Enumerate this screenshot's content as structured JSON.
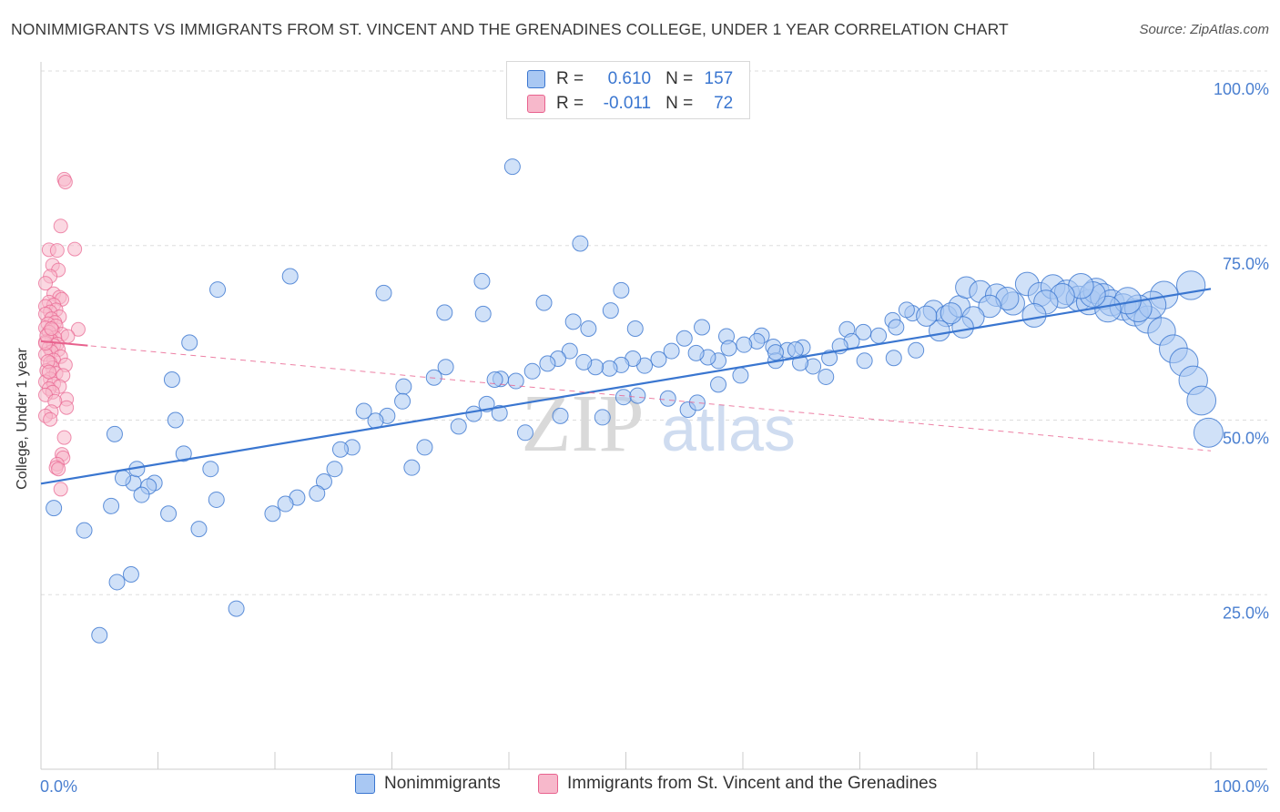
{
  "title": "NONIMMIGRANTS VS IMMIGRANTS FROM ST. VINCENT AND THE GRENADINES COLLEGE, UNDER 1 YEAR CORRELATION CHART",
  "source": "Source: ZipAtlas.com",
  "watermark": {
    "zip": "ZIP",
    "atlas": "atlas"
  },
  "colors": {
    "blue": "#3a76d0",
    "blue_fill": "#a9c8f3",
    "pink": "#e8628e",
    "pink_fill": "#f7b8cb",
    "grid": "#dddddd"
  },
  "legend": {
    "r_label": "R =",
    "n_label": "N =",
    "series": [
      {
        "r": "0.610",
        "n": "157"
      },
      {
        "r": "-0.011",
        "n": "72"
      }
    ]
  },
  "bottom_legend": [
    "Nonimmigrants",
    "Immigrants from St. Vincent and the Grenadines"
  ],
  "chart_data": {
    "type": "scatter",
    "title": "NONIMMIGRANTS VS IMMIGRANTS FROM ST. VINCENT AND THE GRENADINES COLLEGE, UNDER 1 YEAR CORRELATION CHART",
    "xlabel": "",
    "ylabel": "College, Under 1 year",
    "xlim": [
      0,
      100
    ],
    "ylim": [
      0,
      100
    ],
    "x_tick_labels": [
      "0.0%",
      "100.0%"
    ],
    "y_ticks": [
      25,
      50,
      75,
      100
    ],
    "y_tick_labels": [
      "25.0%",
      "50.0%",
      "75.0%",
      "100.0%"
    ],
    "series": [
      {
        "name": "Nonimmigrants",
        "color": "#3a76d0",
        "trend": {
          "x0": 0,
          "y0": 40.9,
          "x1": 100,
          "y1": 68.8,
          "style": "solid"
        },
        "points": [
          [
            40.3,
            86.3
          ],
          [
            46.1,
            75.3
          ],
          [
            21.3,
            70.6
          ],
          [
            37.7,
            69.9
          ],
          [
            29.3,
            68.2
          ],
          [
            49.6,
            68.6
          ],
          [
            43.0,
            66.8
          ],
          [
            48.7,
            65.7
          ],
          [
            34.5,
            65.4
          ],
          [
            37.8,
            65.2
          ],
          [
            45.5,
            64.1
          ],
          [
            46.8,
            63.1
          ],
          [
            50.8,
            63.1
          ],
          [
            56.5,
            63.3
          ],
          [
            58.6,
            62.0
          ],
          [
            61.6,
            62.1
          ],
          [
            62.6,
            60.5
          ],
          [
            65.1,
            60.4
          ],
          [
            68.9,
            63.0
          ],
          [
            70.3,
            62.6
          ],
          [
            72.8,
            64.3
          ],
          [
            74.5,
            65.3
          ],
          [
            76.3,
            65.7
          ],
          [
            77.4,
            64.9
          ],
          [
            78.5,
            66.3
          ],
          [
            79.1,
            69.0
          ],
          [
            80.3,
            68.4
          ],
          [
            81.7,
            67.9
          ],
          [
            83.1,
            66.7
          ],
          [
            84.3,
            69.5
          ],
          [
            85.4,
            68.0
          ],
          [
            86.5,
            69.1
          ],
          [
            87.7,
            68.3
          ],
          [
            88.7,
            67.4
          ],
          [
            89.6,
            66.9
          ],
          [
            90.2,
            68.5
          ],
          [
            90.8,
            67.7
          ],
          [
            91.5,
            66.8
          ],
          [
            92.5,
            66.2
          ],
          [
            93.5,
            65.4
          ],
          [
            94.6,
            64.4
          ],
          [
            95.8,
            62.7
          ],
          [
            96.8,
            60.2
          ],
          [
            97.7,
            58.3
          ],
          [
            98.5,
            55.7
          ],
          [
            99.2,
            52.8
          ],
          [
            99.8,
            48.2
          ],
          [
            98.3,
            69.3
          ],
          [
            96.0,
            67.9
          ],
          [
            95.0,
            66.5
          ],
          [
            93.8,
            66.0
          ],
          [
            92.9,
            67.1
          ],
          [
            91.2,
            65.9
          ],
          [
            89.9,
            68.0
          ],
          [
            88.9,
            69.2
          ],
          [
            87.3,
            67.8
          ],
          [
            85.9,
            66.9
          ],
          [
            84.9,
            65.0
          ],
          [
            82.6,
            67.4
          ],
          [
            81.1,
            66.3
          ],
          [
            79.7,
            64.7
          ],
          [
            78.8,
            63.3
          ],
          [
            77.8,
            65.3
          ],
          [
            76.8,
            62.8
          ],
          [
            75.7,
            64.9
          ],
          [
            74.0,
            65.8
          ],
          [
            73.1,
            63.3
          ],
          [
            71.6,
            62.1
          ],
          [
            69.3,
            61.3
          ],
          [
            68.3,
            60.6
          ],
          [
            67.4,
            58.9
          ],
          [
            66.0,
            57.7
          ],
          [
            64.9,
            58.2
          ],
          [
            63.8,
            60.0
          ],
          [
            62.8,
            58.5
          ],
          [
            61.2,
            61.3
          ],
          [
            60.1,
            60.8
          ],
          [
            58.8,
            60.3
          ],
          [
            57.9,
            58.5
          ],
          [
            57.0,
            59.0
          ],
          [
            56.0,
            59.6
          ],
          [
            55.0,
            61.7
          ],
          [
            53.9,
            59.9
          ],
          [
            52.8,
            58.7
          ],
          [
            51.6,
            57.8
          ],
          [
            50.6,
            58.8
          ],
          [
            49.6,
            57.9
          ],
          [
            48.6,
            57.4
          ],
          [
            47.4,
            57.6
          ],
          [
            46.4,
            58.3
          ],
          [
            45.2,
            59.9
          ],
          [
            44.2,
            58.8
          ],
          [
            43.3,
            58.1
          ],
          [
            42.0,
            57.0
          ],
          [
            40.6,
            55.6
          ],
          [
            39.3,
            55.9
          ],
          [
            38.8,
            55.8
          ],
          [
            38.1,
            52.3
          ],
          [
            37.0,
            50.9
          ],
          [
            35.7,
            49.1
          ],
          [
            34.6,
            57.6
          ],
          [
            33.6,
            56.1
          ],
          [
            32.8,
            46.1
          ],
          [
            31.7,
            43.2
          ],
          [
            31.0,
            54.8
          ],
          [
            30.9,
            52.7
          ],
          [
            29.6,
            50.6
          ],
          [
            28.6,
            49.9
          ],
          [
            27.6,
            51.3
          ],
          [
            26.6,
            46.1
          ],
          [
            25.6,
            45.8
          ],
          [
            25.1,
            43.0
          ],
          [
            24.2,
            41.2
          ],
          [
            23.6,
            39.5
          ],
          [
            21.9,
            38.9
          ],
          [
            20.9,
            38.0
          ],
          [
            19.8,
            36.6
          ],
          [
            16.7,
            23.0
          ],
          [
            15.0,
            38.6
          ],
          [
            13.5,
            34.4
          ],
          [
            11.5,
            50.0
          ],
          [
            7.9,
            41.0
          ],
          [
            6.0,
            37.7
          ],
          [
            6.3,
            48.0
          ],
          [
            12.7,
            61.1
          ],
          [
            15.1,
            68.7
          ],
          [
            11.2,
            55.8
          ],
          [
            14.5,
            43.0
          ],
          [
            10.9,
            36.6
          ],
          [
            12.2,
            45.2
          ],
          [
            9.7,
            41.0
          ],
          [
            9.2,
            40.5
          ],
          [
            8.6,
            39.3
          ],
          [
            7.0,
            41.7
          ],
          [
            8.2,
            43.0
          ],
          [
            7.7,
            27.9
          ],
          [
            6.5,
            26.8
          ],
          [
            5.0,
            19.2
          ],
          [
            3.7,
            34.2
          ],
          [
            1.1,
            37.4
          ],
          [
            39.2,
            51.0
          ],
          [
            41.4,
            48.2
          ],
          [
            44.4,
            50.6
          ],
          [
            48.0,
            50.4
          ],
          [
            49.8,
            53.3
          ],
          [
            51.0,
            53.5
          ],
          [
            53.6,
            53.1
          ],
          [
            55.3,
            51.5
          ],
          [
            56.1,
            52.5
          ],
          [
            57.9,
            55.1
          ],
          [
            59.8,
            56.4
          ],
          [
            62.8,
            59.7
          ],
          [
            64.5,
            60.1
          ],
          [
            67.1,
            56.2
          ],
          [
            70.4,
            58.5
          ],
          [
            72.9,
            58.9
          ],
          [
            74.8,
            60.0
          ]
        ]
      },
      {
        "name": "Immigrants from St. Vincent and the Grenadines",
        "color": "#e8628e",
        "trend": {
          "x0": 0,
          "y0": 61.3,
          "x1": 100,
          "y1": 45.6,
          "style": "dashed",
          "solid_x_end": 4.0
        },
        "points": [
          [
            1.6,
            84.5
          ],
          [
            1.7,
            84.1
          ],
          [
            1.3,
            77.8
          ],
          [
            2.5,
            74.5
          ],
          [
            0.3,
            74.4
          ],
          [
            1.0,
            74.3
          ],
          [
            0.6,
            72.2
          ],
          [
            1.1,
            71.5
          ],
          [
            0.4,
            70.6
          ],
          [
            0.0,
            69.6
          ],
          [
            0.7,
            68.1
          ],
          [
            1.2,
            67.6
          ],
          [
            1.4,
            67.3
          ],
          [
            0.3,
            66.9
          ],
          [
            0.7,
            66.5
          ],
          [
            0.0,
            66.3
          ],
          [
            0.9,
            65.8
          ],
          [
            0.4,
            65.5
          ],
          [
            0.0,
            65.2
          ],
          [
            1.2,
            64.8
          ],
          [
            0.5,
            64.5
          ],
          [
            0.8,
            64.0
          ],
          [
            0.2,
            63.8
          ],
          [
            0.9,
            63.5
          ],
          [
            0.0,
            63.2
          ],
          [
            2.8,
            63.0
          ],
          [
            0.6,
            62.9
          ],
          [
            0.3,
            62.6
          ],
          [
            1.4,
            62.3
          ],
          [
            1.9,
            62.0
          ],
          [
            0.8,
            61.8
          ],
          [
            0.5,
            61.4
          ],
          [
            0.0,
            61.2
          ],
          [
            1.0,
            60.9
          ],
          [
            0.7,
            60.7
          ],
          [
            0.3,
            60.4
          ],
          [
            1.1,
            60.1
          ],
          [
            0.5,
            59.8
          ],
          [
            0.0,
            59.4
          ],
          [
            1.3,
            59.1
          ],
          [
            0.7,
            58.6
          ],
          [
            0.4,
            58.2
          ],
          [
            1.7,
            57.9
          ],
          [
            0.6,
            57.5
          ],
          [
            0.1,
            57.1
          ],
          [
            0.9,
            56.7
          ],
          [
            1.5,
            56.4
          ],
          [
            0.4,
            55.9
          ],
          [
            0.0,
            55.5
          ],
          [
            0.7,
            55.2
          ],
          [
            1.2,
            54.8
          ],
          [
            0.3,
            54.5
          ],
          [
            0.6,
            54.0
          ],
          [
            0.0,
            53.6
          ],
          [
            1.8,
            53.0
          ],
          [
            0.8,
            52.7
          ],
          [
            1.8,
            51.8
          ],
          [
            0.5,
            51.2
          ],
          [
            0.0,
            50.6
          ],
          [
            0.4,
            50.1
          ],
          [
            1.6,
            47.5
          ],
          [
            1.4,
            45.1
          ],
          [
            1.5,
            44.6
          ],
          [
            1.0,
            43.7
          ],
          [
            0.9,
            43.2
          ],
          [
            1.1,
            43.0
          ],
          [
            1.3,
            40.1
          ],
          [
            0.2,
            58.4
          ],
          [
            0.0,
            61.0
          ],
          [
            0.1,
            62.1
          ],
          [
            0.5,
            63.1
          ],
          [
            0.3,
            56.9
          ]
        ]
      }
    ]
  }
}
